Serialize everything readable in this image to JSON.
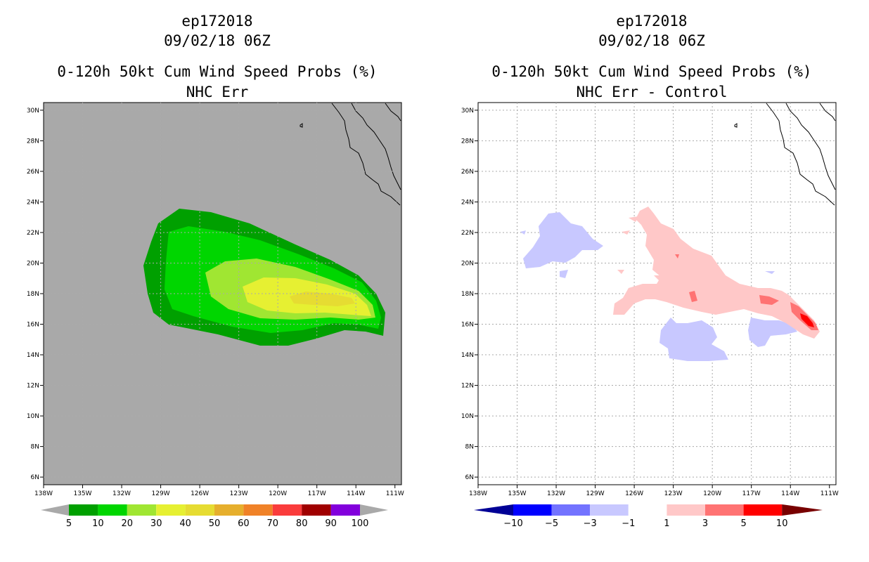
{
  "panels": [
    {
      "storm_id": "ep172018",
      "datetime": "09/02/18 06Z",
      "title": "0-120h 50kt Cum Wind Speed Probs (%)",
      "subtitle": "NHC Err",
      "lat_labels": [
        "30N",
        "28N",
        "26N",
        "24N",
        "22N",
        "20N",
        "18N",
        "16N",
        "14N",
        "12N",
        "10N",
        "8N",
        "6N"
      ],
      "lon_labels": [
        "138W",
        "135W",
        "132W",
        "129W",
        "126W",
        "123W",
        "120W",
        "117W",
        "114W",
        "111W"
      ],
      "colorbar": {
        "labels": [
          "5",
          "10",
          "20",
          "30",
          "40",
          "50",
          "60",
          "70",
          "80",
          "90",
          "100"
        ],
        "colors": [
          "#00a000",
          "#00d600",
          "#a0e632",
          "#e6f032",
          "#e6dc32",
          "#e6af2d",
          "#f08228",
          "#fa3c3c",
          "#a00000",
          "#8200dc"
        ]
      }
    },
    {
      "storm_id": "ep172018",
      "datetime": "09/02/18 06Z",
      "title": "0-120h 50kt Cum Wind Speed Probs (%)",
      "subtitle": "NHC Err - Control",
      "lat_labels": [
        "30N",
        "28N",
        "26N",
        "24N",
        "22N",
        "20N",
        "18N",
        "16N",
        "14N",
        "12N",
        "10N",
        "8N",
        "6N"
      ],
      "lon_labels": [
        "138W",
        "135W",
        "132W",
        "129W",
        "126W",
        "123W",
        "120W",
        "117W",
        "114W",
        "111W"
      ],
      "colorbar": {
        "labels": [
          "−10",
          "−5",
          "−3",
          "−1",
          "1",
          "3",
          "5",
          "10"
        ],
        "colors": [
          "#000096",
          "#0000ff",
          "#7373ff",
          "#c8c8ff",
          "#ffffff",
          "#ffc8c8",
          "#ff7373",
          "#ff0000",
          "#780000"
        ]
      }
    }
  ]
}
